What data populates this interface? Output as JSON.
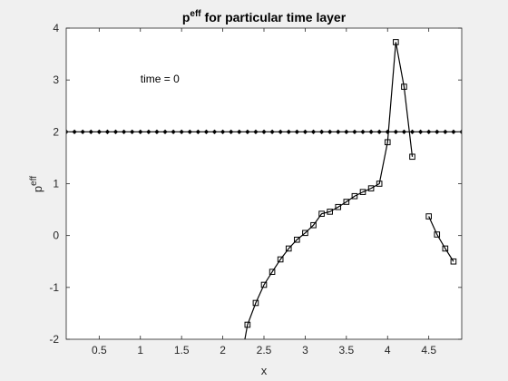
{
  "chart_data": {
    "type": "line",
    "title": {
      "base": "p",
      "sup": "eff",
      "rest": " for particular time layer"
    },
    "xlabel": "x",
    "ylabel": {
      "base": "p",
      "sup": "eff"
    },
    "xlim": [
      0.1,
      4.9
    ],
    "ylim": [
      -2,
      4
    ],
    "xticks": [
      "0.5",
      "1",
      "1.5",
      "2",
      "2.5",
      "3",
      "3.5",
      "4",
      "4.5"
    ],
    "yticks": [
      "-2",
      "-1",
      "0",
      "1",
      "2",
      "3",
      "4"
    ],
    "annotation": {
      "text": "time = 0",
      "x": 1.0,
      "y": 2.95
    },
    "grid": false,
    "colors": {
      "axes_bg": "#ffffff",
      "figure_bg": "#f0f0f0",
      "line": "#000000"
    },
    "series": [
      {
        "marker": "diamond-dot",
        "x": [
          0.1,
          0.2,
          0.3,
          0.4,
          0.5,
          0.6,
          0.7,
          0.8,
          0.9,
          1.0,
          1.1,
          1.2,
          1.3,
          1.4,
          1.5,
          1.6,
          1.7,
          1.8,
          1.9,
          2.0,
          2.1,
          2.2,
          2.3,
          2.4,
          2.5,
          2.6,
          2.7,
          2.8,
          2.9,
          3.0,
          3.1,
          3.2,
          3.3,
          3.4,
          3.5,
          3.6,
          3.7,
          3.8,
          3.9,
          4.0,
          4.1,
          4.2,
          4.3,
          4.4,
          4.5,
          4.6,
          4.7,
          4.8,
          4.9
        ],
        "y": [
          2,
          2,
          2,
          2,
          2,
          2,
          2,
          2,
          2,
          2,
          2,
          2,
          2,
          2,
          2,
          2,
          2,
          2,
          2,
          2,
          2,
          2,
          2,
          2,
          2,
          2,
          2,
          2,
          2,
          2,
          2,
          2,
          2,
          2,
          2,
          2,
          2,
          2,
          2,
          2,
          2,
          2,
          2,
          2,
          2,
          2,
          2,
          2,
          2
        ]
      },
      {
        "marker": "square",
        "segments": [
          {
            "x": [
              2.2,
              2.3,
              2.4,
              2.5,
              2.6,
              2.7,
              2.8,
              2.9,
              3.0,
              3.1,
              3.2,
              3.3,
              3.4,
              3.5,
              3.6,
              3.7,
              3.8,
              3.9,
              4.0,
              4.1,
              4.2,
              4.3
            ],
            "y": [
              -2.6,
              -1.72,
              -1.3,
              -0.95,
              -0.7,
              -0.46,
              -0.25,
              -0.08,
              0.05,
              0.2,
              0.42,
              0.46,
              0.55,
              0.65,
              0.76,
              0.84,
              0.91,
              1.0,
              1.8,
              3.73,
              2.87,
              1.52
            ]
          },
          {
            "x": [
              4.5,
              4.6,
              4.7,
              4.8
            ],
            "y": [
              0.37,
              0.02,
              -0.25,
              -0.5
            ]
          }
        ]
      }
    ]
  }
}
